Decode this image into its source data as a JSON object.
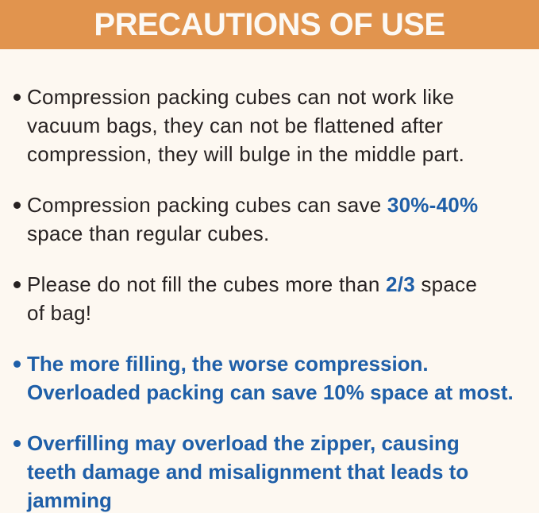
{
  "header": {
    "title": "PRECAUTIONS OF USE"
  },
  "colors": {
    "header_background": "#E1944E",
    "header_text": "#FCF9F4",
    "body_background": "#FDF8F1",
    "body_text": "#272222",
    "accent_blue": "#1F5FA8"
  },
  "bullets": [
    {
      "tone": "dark",
      "lines": [
        [
          {
            "t": "Compression packing cubes can not work like"
          }
        ],
        [
          {
            "t": "vacuum bags, they can not be flattened after"
          }
        ],
        [
          {
            "t": "compression, they will bulge in the middle part."
          }
        ]
      ]
    },
    {
      "tone": "dark",
      "lines": [
        [
          {
            "t": "Compression packing cubes can save "
          },
          {
            "t": "30%-40%",
            "hl": true
          }
        ],
        [
          {
            "t": "space than regular cubes."
          }
        ]
      ]
    },
    {
      "tone": "dark",
      "lines": [
        [
          {
            "t": "Please do not fill the cubes more than "
          },
          {
            "t": "2/3",
            "hl": true
          },
          {
            "t": " space"
          }
        ],
        [
          {
            "t": "of bag!"
          }
        ]
      ]
    },
    {
      "tone": "blue",
      "lines": [
        [
          {
            "t": "The more filling, the worse compression."
          }
        ],
        [
          {
            "t": "Overloaded packing can save 10% space at most."
          }
        ]
      ]
    },
    {
      "tone": "blue",
      "lines": [
        [
          {
            "t": "Overfilling may overload the zipper, causing"
          }
        ],
        [
          {
            "t": "teeth damage and misalignment that leads to"
          }
        ],
        [
          {
            "t": "jamming"
          }
        ]
      ]
    }
  ]
}
